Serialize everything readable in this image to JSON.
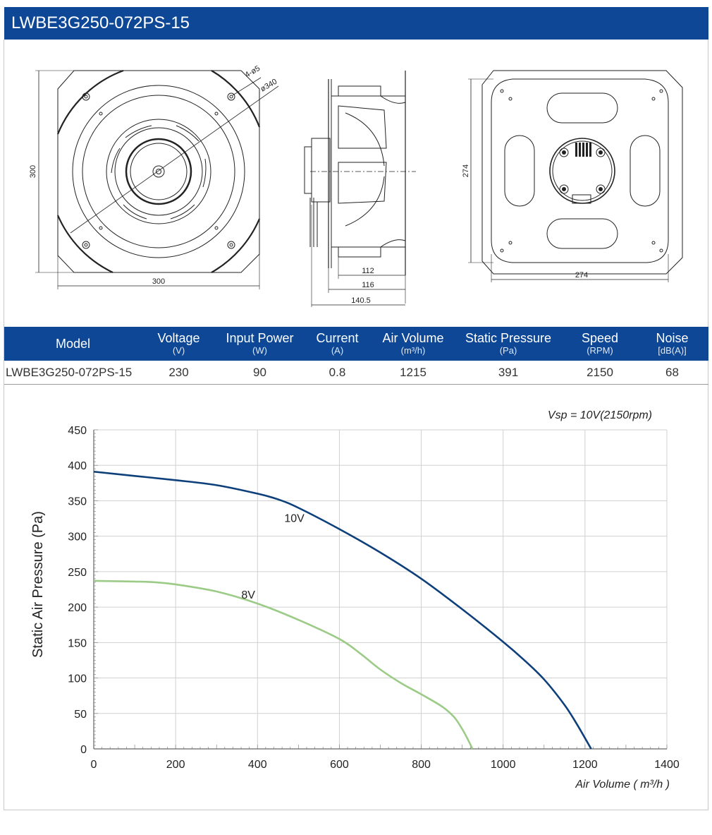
{
  "title": "LWBE3G250-072PS-15",
  "drawings": {
    "front_width_label": "300",
    "front_height_label": "300",
    "holes_label": "4-ø5",
    "diameter_label": "ø340",
    "side_dims": [
      "112",
      "116",
      "140.5"
    ],
    "back_width_label": "274",
    "back_height_label": "274"
  },
  "spec_table": {
    "columns": [
      {
        "label": "Model",
        "unit": ""
      },
      {
        "label": "Voltage",
        "unit": "(V)"
      },
      {
        "label": "Input Power",
        "unit": "(W)"
      },
      {
        "label": "Current",
        "unit": "(A)"
      },
      {
        "label": "Air Volume",
        "unit": "(m³/h)"
      },
      {
        "label": "Static Pressure",
        "unit": "(Pa)"
      },
      {
        "label": "Speed",
        "unit": "(RPM)"
      },
      {
        "label": "Noise",
        "unit": "[dB(A)]"
      }
    ],
    "row": [
      "LWBE3G250-072PS-15",
      "230",
      "90",
      "0.8",
      "1215",
      "391",
      "2150",
      "68"
    ]
  },
  "colors": {
    "header_blue": "#0d4796",
    "curve_10v": "#0d3f7a",
    "curve_8v": "#9ccb87"
  },
  "chart_data": {
    "type": "line",
    "annotation": "Vsp = 10V(2150rpm)",
    "xlabel": "Air Volume ( m³/h )",
    "ylabel": "Static Air Pressure  (Pa)",
    "xlim": [
      0,
      1400
    ],
    "ylim": [
      0,
      450
    ],
    "x_ticks": [
      0,
      200,
      400,
      600,
      800,
      1000,
      1200,
      1400
    ],
    "y_ticks": [
      0,
      50,
      100,
      150,
      200,
      250,
      300,
      350,
      400,
      450
    ],
    "grid": true,
    "series": [
      {
        "name": "10V",
        "x": [
          0,
          100,
          200,
          300,
          400,
          450,
          500,
          600,
          700,
          800,
          900,
          1000,
          1050,
          1100,
          1150,
          1180,
          1215
        ],
        "y": [
          391,
          385,
          379,
          372,
          360,
          352,
          340,
          310,
          277,
          240,
          197,
          151,
          126,
          98,
          62,
          35,
          0
        ]
      },
      {
        "name": "8V",
        "x": [
          0,
          100,
          150,
          200,
          300,
          400,
          500,
          600,
          650,
          700,
          750,
          800,
          850,
          880,
          900,
          915,
          925
        ],
        "y": [
          237,
          236,
          235,
          232,
          222,
          205,
          182,
          155,
          135,
          112,
          93,
          77,
          60,
          45,
          28,
          12,
          0
        ]
      }
    ]
  }
}
